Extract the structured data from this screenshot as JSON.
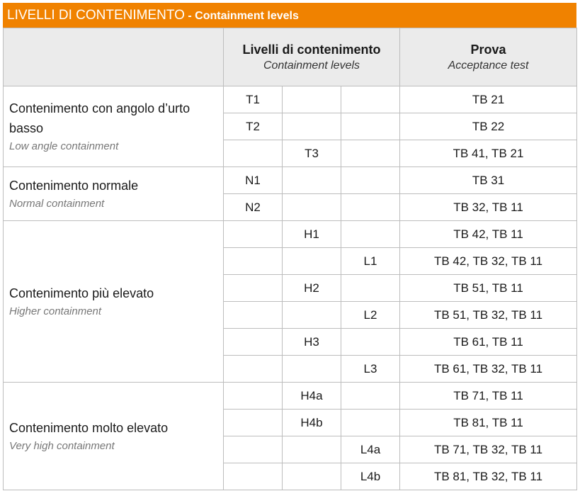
{
  "title": {
    "main": "LIVELLI DI CONTENIMENTO",
    "sub": " - Containment levels"
  },
  "header": {
    "levels": {
      "label": "Livelli di contenimento",
      "sub": "Containment levels"
    },
    "test": {
      "label": "Prova",
      "sub": "Acceptance test"
    }
  },
  "accent_color": "#f08200",
  "groups": [
    {
      "it": "Contenimento con angolo d’urto basso",
      "en": "Low angle containment",
      "rows": [
        [
          "T1",
          "",
          "",
          "TB 21"
        ],
        [
          "T2",
          "",
          "",
          "TB 22"
        ],
        [
          "",
          "T3",
          "",
          "TB 41, TB 21"
        ]
      ]
    },
    {
      "it": "Contenimento normale",
      "en": "Normal containment",
      "rows": [
        [
          "N1",
          "",
          "",
          "TB 31"
        ],
        [
          "N2",
          "",
          "",
          "TB 32, TB 11"
        ]
      ]
    },
    {
      "it": "Contenimento più elevato",
      "en": "Higher containment",
      "rows": [
        [
          "",
          "H1",
          "",
          "TB 42, TB 11"
        ],
        [
          "",
          "",
          "L1",
          "TB 42, TB 32, TB 11"
        ],
        [
          "",
          "H2",
          "",
          "TB 51, TB 11"
        ],
        [
          "",
          "",
          "L2",
          "TB 51, TB 32, TB 11"
        ],
        [
          "",
          "H3",
          "",
          "TB 61, TB 11"
        ],
        [
          "",
          "",
          "L3",
          "TB 61, TB 32, TB 11"
        ]
      ]
    },
    {
      "it": "Contenimento molto elevato",
      "en": "Very high containment",
      "rows": [
        [
          "",
          "H4a",
          "",
          "TB 71, TB 11"
        ],
        [
          "",
          "H4b",
          "",
          "TB 81, TB 11"
        ],
        [
          "",
          "",
          "L4a",
          "TB 71, TB 32, TB 11"
        ],
        [
          "",
          "",
          "L4b",
          "TB 81, TB 32, TB 11"
        ]
      ]
    }
  ]
}
